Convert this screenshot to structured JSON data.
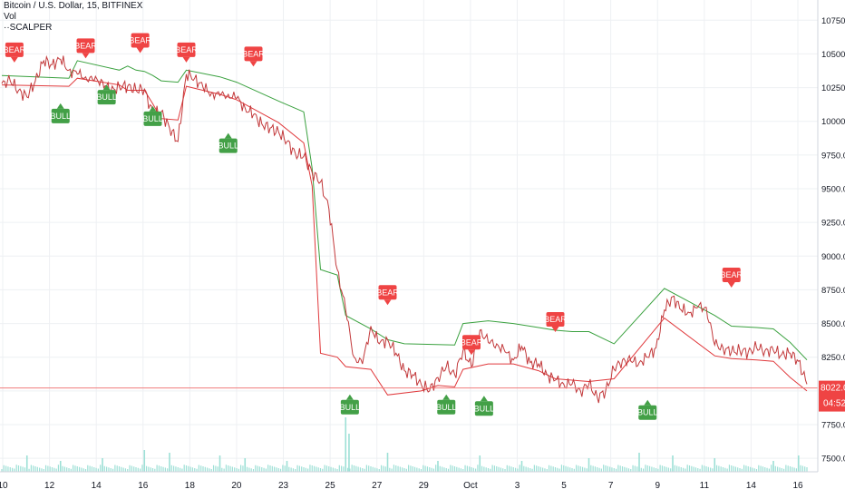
{
  "legend": {
    "symbol": "Bitcoin / U.S. Dollar, 15, BITFINEX",
    "volume": "Vol",
    "indicator": "··SCALPER"
  },
  "colors": {
    "bg": "#ffffff",
    "grid": "#eef0f3",
    "price": "#c2383a",
    "price_up": "#3a8f3f",
    "upper": "#3aa13f",
    "lower": "#e0393c",
    "bull": "#43a047",
    "bear": "#ef4444",
    "last_price_line": "#f07c7c",
    "volume": "#9de0d6"
  },
  "chart_data": {
    "type": "line",
    "title": "Bitcoin / U.S. Dollar, 15, BITFINEX",
    "xlabel": "",
    "ylabel": "",
    "ylim": [
      7400,
      10900
    ],
    "y_ticks": [
      "10750.0",
      "10500.0",
      "10250.0",
      "10000.0",
      "9750.0",
      "9500.0",
      "9250.0",
      "9000.0",
      "8750.0",
      "8500.0",
      "8250.0",
      "8000.0",
      "7750.0",
      "7500.0"
    ],
    "x_ticks": [
      "10",
      "12",
      "14",
      "16",
      "18",
      "20",
      "23",
      "25",
      "27",
      "29",
      "Oct",
      "3",
      "5",
      "7",
      "9",
      "11",
      "14",
      "16"
    ],
    "grid": true,
    "last_price": {
      "value": "8022.0",
      "time_to_close": "04:52"
    },
    "price_path": [
      [
        0,
        10280
      ],
      [
        1,
        10300
      ],
      [
        2,
        10230
      ],
      [
        3,
        10180
      ],
      [
        4,
        10300
      ],
      [
        5,
        10450
      ],
      [
        6,
        10420
      ],
      [
        7,
        10460
      ],
      [
        8,
        10380
      ],
      [
        9,
        10350
      ],
      [
        10,
        10330
      ],
      [
        11,
        10300
      ],
      [
        12,
        10300
      ],
      [
        13,
        10220
      ],
      [
        14,
        10260
      ],
      [
        15,
        10260
      ],
      [
        16,
        10230
      ],
      [
        17,
        10240
      ],
      [
        18,
        10050
      ],
      [
        19,
        10070
      ],
      [
        20,
        9950
      ],
      [
        21,
        9850
      ],
      [
        22,
        10350
      ],
      [
        23,
        10320
      ],
      [
        24,
        10250
      ],
      [
        25,
        10210
      ],
      [
        26,
        10190
      ],
      [
        27,
        10200
      ],
      [
        28,
        10170
      ],
      [
        29,
        10100
      ],
      [
        30,
        10050
      ],
      [
        31,
        9980
      ],
      [
        32,
        9950
      ],
      [
        33,
        9920
      ],
      [
        34,
        9850
      ],
      [
        35,
        9760
      ],
      [
        36,
        9740
      ],
      [
        37,
        9620
      ],
      [
        38,
        9550
      ],
      [
        39,
        9350
      ],
      [
        40,
        8900
      ],
      [
        41,
        8600
      ],
      [
        42,
        8250
      ],
      [
        43,
        8200
      ],
      [
        44,
        8480
      ],
      [
        45,
        8350
      ],
      [
        46,
        8380
      ],
      [
        47,
        8280
      ],
      [
        48,
        8150
      ],
      [
        49,
        8120
      ],
      [
        50,
        8050
      ],
      [
        51,
        8000
      ],
      [
        52,
        8100
      ],
      [
        53,
        8180
      ],
      [
        54,
        8120
      ],
      [
        55,
        8300
      ],
      [
        56,
        8180
      ],
      [
        57,
        8450
      ],
      [
        58,
        8360
      ],
      [
        59,
        8350
      ],
      [
        60,
        8290
      ],
      [
        61,
        8230
      ],
      [
        62,
        8330
      ],
      [
        63,
        8210
      ],
      [
        64,
        8200
      ],
      [
        65,
        8120
      ],
      [
        66,
        8080
      ],
      [
        67,
        8050
      ],
      [
        68,
        8050
      ],
      [
        69,
        8000
      ],
      [
        70,
        8050
      ],
      [
        71,
        7950
      ],
      [
        72,
        8000
      ],
      [
        73,
        8160
      ],
      [
        74,
        8230
      ],
      [
        75,
        8220
      ],
      [
        76,
        8210
      ],
      [
        77,
        8250
      ],
      [
        78,
        8320
      ],
      [
        79,
        8600
      ],
      [
        80,
        8700
      ],
      [
        81,
        8600
      ],
      [
        82,
        8580
      ],
      [
        83,
        8620
      ],
      [
        84,
        8620
      ],
      [
        85,
        8340
      ],
      [
        86,
        8320
      ],
      [
        87,
        8290
      ],
      [
        88,
        8300
      ],
      [
        89,
        8290
      ],
      [
        90,
        8320
      ],
      [
        91,
        8300
      ],
      [
        92,
        8300
      ],
      [
        93,
        8270
      ],
      [
        94,
        8280
      ],
      [
        95,
        8220
      ],
      [
        96,
        8050
      ]
    ],
    "upper_band": [
      [
        0,
        10340
      ],
      [
        8,
        10320
      ],
      [
        9,
        10450
      ],
      [
        14,
        10380
      ],
      [
        15,
        10410
      ],
      [
        16,
        10380
      ],
      [
        17,
        10370
      ],
      [
        18,
        10340
      ],
      [
        19,
        10300
      ],
      [
        21,
        10290
      ],
      [
        22,
        10380
      ],
      [
        26,
        10330
      ],
      [
        28,
        10290
      ],
      [
        33,
        10150
      ],
      [
        36,
        10070
      ],
      [
        37,
        9650
      ],
      [
        38,
        8900
      ],
      [
        40,
        8860
      ],
      [
        41,
        8560
      ],
      [
        44,
        8460
      ],
      [
        46,
        8380
      ],
      [
        48,
        8350
      ],
      [
        54,
        8340
      ],
      [
        55,
        8500
      ],
      [
        58,
        8520
      ],
      [
        61,
        8500
      ],
      [
        64,
        8470
      ],
      [
        66,
        8450
      ],
      [
        68,
        8440
      ],
      [
        70,
        8440
      ],
      [
        73,
        8350
      ],
      [
        79,
        8760
      ],
      [
        85,
        8560
      ],
      [
        87,
        8480
      ],
      [
        90,
        8470
      ],
      [
        92,
        8460
      ],
      [
        94,
        8360
      ],
      [
        96,
        8230
      ]
    ],
    "lower_band": [
      [
        0,
        10270
      ],
      [
        8,
        10260
      ],
      [
        9,
        10320
      ],
      [
        14,
        10270
      ],
      [
        15,
        10230
      ],
      [
        17,
        10230
      ],
      [
        18,
        10130
      ],
      [
        19,
        10020
      ],
      [
        21,
        10010
      ],
      [
        22,
        10260
      ],
      [
        26,
        10200
      ],
      [
        28,
        10160
      ],
      [
        33,
        9990
      ],
      [
        36,
        9840
      ],
      [
        37,
        9520
      ],
      [
        38,
        8280
      ],
      [
        40,
        8250
      ],
      [
        41,
        8180
      ],
      [
        44,
        8160
      ],
      [
        46,
        7970
      ],
      [
        50,
        8000
      ],
      [
        52,
        8040
      ],
      [
        54,
        8030
      ],
      [
        55,
        8160
      ],
      [
        58,
        8200
      ],
      [
        61,
        8200
      ],
      [
        64,
        8150
      ],
      [
        66,
        8090
      ],
      [
        68,
        8080
      ],
      [
        70,
        8070
      ],
      [
        73,
        8090
      ],
      [
        79,
        8540
      ],
      [
        85,
        8260
      ],
      [
        87,
        8240
      ],
      [
        90,
        8230
      ],
      [
        92,
        8220
      ],
      [
        94,
        8100
      ],
      [
        96,
        8000
      ]
    ],
    "signals": [
      {
        "label": "BEAR",
        "type": "bear",
        "x": 1.5,
        "y": 10450
      },
      {
        "label": "BULL",
        "type": "bull",
        "x": 7,
        "y": 10120
      },
      {
        "label": "BEAR",
        "type": "bear",
        "x": 10,
        "y": 10480
      },
      {
        "label": "BULL",
        "type": "bull",
        "x": 12.5,
        "y": 10260
      },
      {
        "label": "BEAR",
        "type": "bear",
        "x": 16.5,
        "y": 10520
      },
      {
        "label": "BULL",
        "type": "bull",
        "x": 18,
        "y": 10100
      },
      {
        "label": "BEAR",
        "type": "bear",
        "x": 22,
        "y": 10450
      },
      {
        "label": "BULL",
        "type": "bull",
        "x": 27,
        "y": 9900
      },
      {
        "label": "BEAR",
        "type": "bear",
        "x": 30,
        "y": 10420
      },
      {
        "label": "BULL",
        "type": "bull",
        "x": 41.5,
        "y": 7960
      },
      {
        "label": "BEAR",
        "type": "bear",
        "x": 46,
        "y": 8650
      },
      {
        "label": "BULL",
        "type": "bull",
        "x": 53,
        "y": 7960
      },
      {
        "label": "BEAR",
        "type": "bear",
        "x": 56,
        "y": 8280
      },
      {
        "label": "BULL",
        "type": "bull",
        "x": 57.5,
        "y": 7950
      },
      {
        "label": "BEAR",
        "type": "bear",
        "x": 66,
        "y": 8450
      },
      {
        "label": "BULL",
        "type": "bull",
        "x": 77,
        "y": 7920
      },
      {
        "label": "BEAR",
        "type": "bear",
        "x": 87,
        "y": 8780
      }
    ],
    "volume_spikes": [
      [
        3,
        0.3
      ],
      [
        7,
        0.2
      ],
      [
        12,
        0.25
      ],
      [
        17,
        0.4
      ],
      [
        20,
        0.35
      ],
      [
        26,
        0.3
      ],
      [
        29,
        0.25
      ],
      [
        34,
        0.2
      ],
      [
        41,
        1.0
      ],
      [
        41.4,
        0.7
      ],
      [
        46,
        0.35
      ],
      [
        52,
        0.2
      ],
      [
        57,
        0.3
      ],
      [
        62,
        0.2
      ],
      [
        70,
        0.25
      ],
      [
        76,
        0.35
      ],
      [
        80,
        0.3
      ],
      [
        85,
        0.25
      ],
      [
        92,
        0.2
      ],
      [
        95,
        0.3
      ]
    ]
  }
}
